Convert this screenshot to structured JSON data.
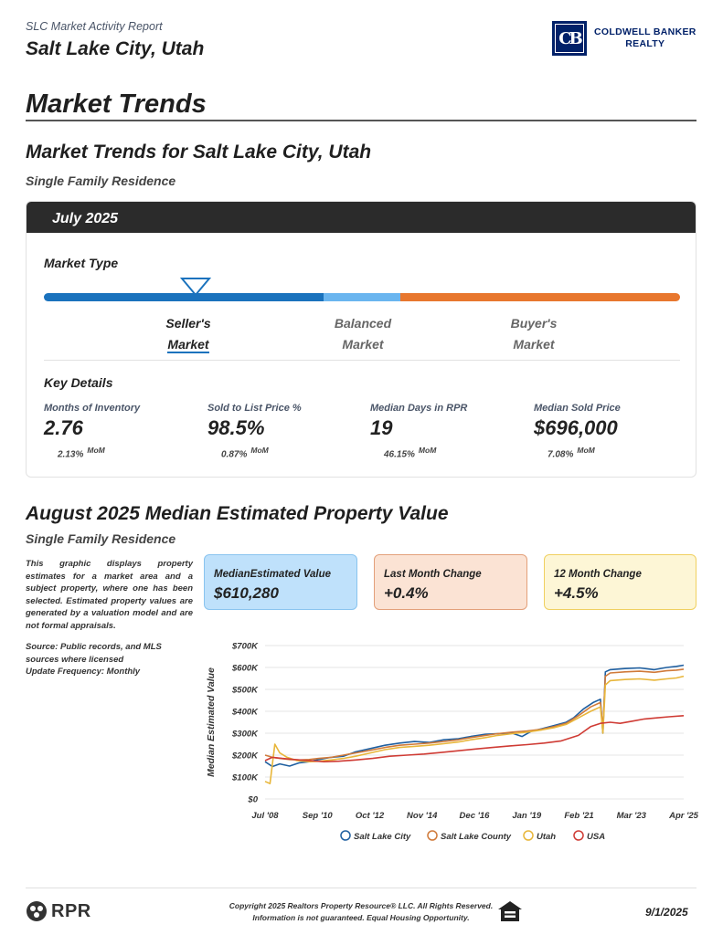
{
  "header": {
    "report_name": "SLC Market Activity Report",
    "city": "Salt Lake City, Utah",
    "logo": {
      "mark": "CB",
      "line1": "COLDWELL BANKER",
      "line2": "REALTY",
      "color": "#012169"
    }
  },
  "market_trends": {
    "title": "Market Trends",
    "heading": "Market Trends for Salt Lake City, Utah",
    "property_type": "Single Family Residence",
    "period": "July 2025",
    "market_type_label": "Market Type",
    "market_type_selected": "Seller's Market",
    "market_labels": {
      "seller_line1": "Seller's",
      "seller_line2": "Market",
      "balanced_line1": "Balanced",
      "balanced_line2": "Market",
      "buyer_line1": "Buyer's",
      "buyer_line2": "Market"
    },
    "bar_colors": {
      "seller": "#1a72bd",
      "balanced": "#6ab5ef",
      "buyer": "#e8772e"
    },
    "key_details_label": "Key Details",
    "key_details": [
      {
        "label": "Months of Inventory",
        "value": "2.76",
        "change": "2.13%",
        "change_unit": "MoM"
      },
      {
        "label": "Sold to List Price %",
        "value": "98.5%",
        "change": "0.87%",
        "change_unit": "MoM"
      },
      {
        "label": "Median Days in RPR",
        "value": "19",
        "change": "46.15%",
        "change_unit": "MoM"
      },
      {
        "label": "Median Sold Price",
        "value": "$696,000",
        "change": "7.08%",
        "change_unit": "MoM"
      }
    ]
  },
  "estimated_value": {
    "title": "August 2025 Median Estimated Property Value",
    "property_type": "Single Family Residence",
    "description": "This graphic displays property estimates for a market area and a subject property, where one has been selected. Estimated property values are generated by a valuation model and are not formal appraisals.",
    "source": "Source: Public records, and MLS sources where licensed",
    "update_frequency": "Update Frequency: Monthly",
    "cards": [
      {
        "label": "MedianEstimated Value",
        "value": "$610,280"
      },
      {
        "label": "Last Month Change",
        "value": "+0.4%"
      },
      {
        "label": "12 Month Change",
        "value": "+4.5%"
      }
    ]
  },
  "chart_data": {
    "type": "line",
    "title": "",
    "xlabel": "",
    "ylabel": "Median Estimated Value",
    "ylim": [
      0,
      700000
    ],
    "yticks": [
      "$0",
      "$100K",
      "$200K",
      "$300K",
      "$400K",
      "$500K",
      "$600K",
      "$700K"
    ],
    "xticks": [
      "Jul '08",
      "Sep '10",
      "Oct '12",
      "Nov '14",
      "Dec '16",
      "Jan '19",
      "Feb '21",
      "Mar '23",
      "Apr '25"
    ],
    "grid": true,
    "legend_position": "bottom",
    "series": [
      {
        "name": "Salt Lake City",
        "color": "#1f5fa0",
        "x": [
          2008.5,
          2008.8,
          2009.1,
          2009.5,
          2009.9,
          2010.3,
          2010.7,
          2011.2,
          2011.7,
          2012.2,
          2012.8,
          2013.4,
          2014.0,
          2014.6,
          2015.2,
          2015.8,
          2016.4,
          2016.9,
          2017.5,
          2018.0,
          2018.6,
          2019.0,
          2019.4,
          2019.8,
          2020.3,
          2020.8,
          2021.1,
          2021.5,
          2021.9,
          2022.2,
          2022.3,
          2022.4,
          2022.6,
          2023.2,
          2023.8,
          2024.4,
          2024.9,
          2025.3,
          2025.6
        ],
        "values": [
          170000,
          148000,
          160000,
          150000,
          165000,
          170000,
          180000,
          190000,
          195000,
          215000,
          230000,
          245000,
          255000,
          262000,
          258000,
          270000,
          275000,
          285000,
          295000,
          298000,
          300000,
          285000,
          310000,
          320000,
          335000,
          350000,
          370000,
          410000,
          440000,
          455000,
          300000,
          580000,
          590000,
          595000,
          598000,
          590000,
          600000,
          605000,
          610280
        ]
      },
      {
        "name": "Salt Lake County",
        "color": "#d07a3a",
        "x": [
          2008.5,
          2008.8,
          2009.1,
          2009.5,
          2009.9,
          2010.3,
          2010.7,
          2011.2,
          2011.7,
          2012.2,
          2012.8,
          2013.4,
          2014.0,
          2014.6,
          2015.2,
          2015.8,
          2016.4,
          2016.9,
          2017.5,
          2018.0,
          2018.6,
          2019.2,
          2019.8,
          2020.3,
          2020.8,
          2021.3,
          2021.8,
          2022.2,
          2022.3,
          2022.4,
          2022.6,
          2023.2,
          2023.8,
          2024.4,
          2024.9,
          2025.3,
          2025.6
        ],
        "values": [
          200000,
          190000,
          185000,
          180000,
          178000,
          180000,
          185000,
          190000,
          200000,
          210000,
          222000,
          235000,
          245000,
          250000,
          255000,
          262000,
          270000,
          280000,
          290000,
          298000,
          305000,
          310000,
          318000,
          330000,
          345000,
          380000,
          420000,
          440000,
          320000,
          560000,
          575000,
          580000,
          583000,
          578000,
          585000,
          588000,
          592000
        ]
      },
      {
        "name": "Utah",
        "color": "#e8b63a",
        "x": [
          2008.5,
          2008.7,
          2008.9,
          2009.1,
          2009.4,
          2009.8,
          2010.3,
          2010.7,
          2011.2,
          2011.7,
          2012.2,
          2012.8,
          2013.4,
          2014.0,
          2014.6,
          2015.2,
          2015.8,
          2016.4,
          2016.9,
          2017.5,
          2018.0,
          2018.6,
          2019.2,
          2019.8,
          2020.3,
          2020.8,
          2021.3,
          2021.8,
          2022.2,
          2022.3,
          2022.4,
          2022.6,
          2023.2,
          2023.8,
          2024.4,
          2024.9,
          2025.3,
          2025.6
        ],
        "values": [
          80000,
          70000,
          250000,
          210000,
          190000,
          175000,
          170000,
          172000,
          178000,
          185000,
          195000,
          210000,
          225000,
          235000,
          240000,
          245000,
          252000,
          260000,
          270000,
          280000,
          290000,
          298000,
          305000,
          315000,
          325000,
          340000,
          370000,
          400000,
          420000,
          300000,
          520000,
          540000,
          545000,
          548000,
          542000,
          548000,
          552000,
          560000
        ]
      },
      {
        "name": "USA",
        "color": "#cf3b34",
        "x": [
          2008.5,
          2008.8,
          2009.2,
          2009.7,
          2010.3,
          2010.9,
          2011.5,
          2012.2,
          2012.9,
          2013.6,
          2014.3,
          2015.0,
          2015.7,
          2016.4,
          2017.1,
          2017.8,
          2018.5,
          2019.2,
          2019.9,
          2020.6,
          2021.3,
          2021.8,
          2022.2,
          2022.6,
          2023.0,
          2023.5,
          2024.0,
          2024.5,
          2025.0,
          2025.6
        ],
        "values": [
          175000,
          190000,
          185000,
          180000,
          175000,
          170000,
          172000,
          178000,
          185000,
          195000,
          200000,
          205000,
          212000,
          220000,
          228000,
          235000,
          242000,
          248000,
          255000,
          265000,
          290000,
          330000,
          345000,
          350000,
          345000,
          355000,
          365000,
          370000,
          375000,
          380000
        ]
      }
    ]
  },
  "footer": {
    "brand": "RPR",
    "copyright_line1": "Copyright 2025 Realtors Property Resource® LLC. All Rights Reserved.",
    "copyright_line2": "Information is not guaranteed. Equal Housing Opportunity.",
    "date": "9/1/2025"
  }
}
